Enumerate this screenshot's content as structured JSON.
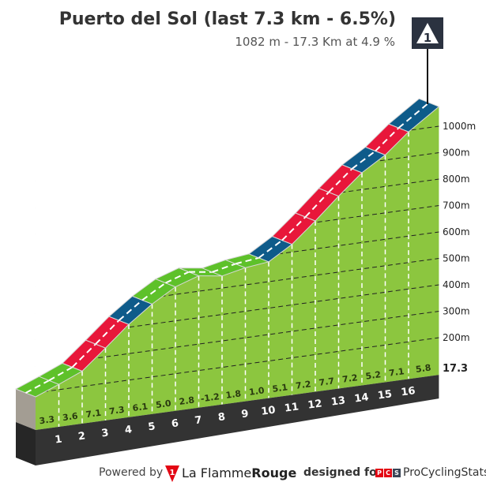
{
  "header": {
    "title": "Puerto del Sol (last 7.3 km - 6.5%)",
    "subtitle": "1082 m - 17.3 Km at 4.9 %",
    "marker_label": "1"
  },
  "chart_data": {
    "type": "area",
    "title": "Puerto del Sol (last 7.3 km - 6.5%)",
    "summit_elevation_m": 1082,
    "total_distance_km": 17.3,
    "avg_gradient_pct": 4.9,
    "segments": [
      {
        "km_end": 1,
        "gradient": "3.3",
        "color": "#5ec12a"
      },
      {
        "km_end": 2,
        "gradient": "3.6",
        "color": "#5ec12a"
      },
      {
        "km_end": 3,
        "gradient": "7.1",
        "color": "#e8173a"
      },
      {
        "km_end": 4,
        "gradient": "7.3",
        "color": "#e8173a"
      },
      {
        "km_end": 5,
        "gradient": "6.1",
        "color": "#0e5b8a"
      },
      {
        "km_end": 6,
        "gradient": "5.0",
        "color": "#5ec12a"
      },
      {
        "km_end": 7,
        "gradient": "2.8",
        "color": "#5ec12a"
      },
      {
        "km_end": 8,
        "gradient": "-1.2",
        "color": "#5ec12a"
      },
      {
        "km_end": 9,
        "gradient": "1.8",
        "color": "#5ec12a"
      },
      {
        "km_end": 10,
        "gradient": "1.0",
        "color": "#5ec12a"
      },
      {
        "km_end": 11,
        "gradient": "5.1",
        "color": "#0e5b8a"
      },
      {
        "km_end": 12,
        "gradient": "7.2",
        "color": "#e8173a"
      },
      {
        "km_end": 13,
        "gradient": "7.7",
        "color": "#e8173a"
      },
      {
        "km_end": 14,
        "gradient": "7.2",
        "color": "#e8173a"
      },
      {
        "km_end": 15,
        "gradient": "5.2",
        "color": "#0e5b8a"
      },
      {
        "km_end": 16,
        "gradient": "7.1",
        "color": "#e8173a"
      },
      {
        "km_end": 17.3,
        "gradient": "5.8",
        "color": "#0e5b8a"
      }
    ],
    "km_labels": [
      "1",
      "2",
      "3",
      "4",
      "5",
      "6",
      "7",
      "8",
      "9",
      "10",
      "11",
      "12",
      "13",
      "14",
      "15",
      "16"
    ],
    "end_label": "17.3",
    "y_ticks": [
      {
        "value": 1000,
        "label": "1000m"
      },
      {
        "value": 900,
        "label": "900m"
      },
      {
        "value": 800,
        "label": "800m"
      },
      {
        "value": 700,
        "label": "700m"
      },
      {
        "value": 600,
        "label": "600m"
      },
      {
        "value": 500,
        "label": "500m"
      },
      {
        "value": 400,
        "label": "400m"
      },
      {
        "value": 300,
        "label": "300m"
      },
      {
        "value": 200,
        "label": "200m"
      }
    ],
    "colors": {
      "fill": "#8cc63f",
      "base": "#333333",
      "side": "#a39d93",
      "marker": "#2b3240"
    }
  },
  "footer": {
    "powered_by": "Powered by",
    "logo_badge": "1",
    "brand_a": "La Flamme",
    "brand_b": "Rouge",
    "designed_for": "designed for",
    "pcs_p": "P",
    "pcs_c": "C",
    "pcs_s": "S",
    "pcs_name": "ProCyclingStats"
  }
}
